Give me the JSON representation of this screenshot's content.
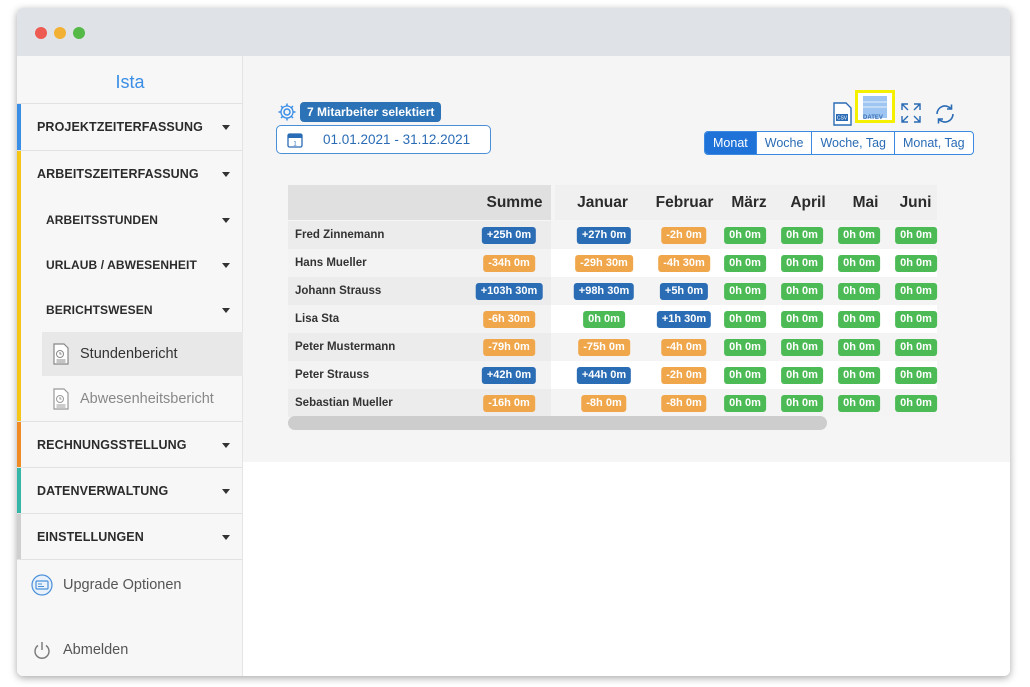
{
  "app": {
    "title": "Ista"
  },
  "colors": {
    "accent": "#1f73d8",
    "positive": "#2b6db5",
    "negative": "#f0a64a",
    "zero": "#4cba55",
    "highlight": "#f4f000"
  },
  "sidebar": {
    "sections": [
      {
        "label": "PROJEKTZEITERFASSUNG",
        "stripe": "#3a8ee6"
      },
      {
        "label": "ARBEITSZEITERFASSUNG",
        "stripe": "#f5c518"
      },
      {
        "label": "RECHNUNGSSTELLUNG",
        "stripe": "#f08a24"
      },
      {
        "label": "DATENVERWALTUNG",
        "stripe": "#36b6a6"
      },
      {
        "label": "EINSTELLUNGEN",
        "stripe": "#cfcfcf"
      }
    ],
    "subsections": [
      {
        "label": "ARBEITSSTUNDEN"
      },
      {
        "label": "URLAUB / ABWESENHEIT"
      },
      {
        "label": "BERICHTSWESEN"
      }
    ],
    "reports": [
      {
        "label": "Stundenbericht",
        "icon": "report-doc-icon",
        "active": true
      },
      {
        "label": "Abwesenheitsbericht",
        "icon": "report-doc-icon",
        "active": false
      }
    ],
    "upgrade": {
      "label": "Upgrade Optionen",
      "icon": "upgrade-icon"
    },
    "logout": {
      "label": "Abmelden",
      "icon": "power-icon"
    }
  },
  "toolbar": {
    "selected_badge": "7 Mitarbeiter selektiert",
    "date_range": "01.01.2021 - 31.12.2021",
    "icons": [
      "gear-icon",
      "calendar-icon",
      "csv-export-icon",
      "datev-export-icon",
      "expand-icon",
      "refresh-icon"
    ],
    "datev_label": "DATEV",
    "views": [
      "Monat",
      "Woche",
      "Woche, Tag",
      "Monat, Tag"
    ],
    "active_view": "Monat"
  },
  "table": {
    "columns": [
      "Summe",
      "Januar",
      "Februar",
      "März",
      "April",
      "Mai",
      "Juni"
    ],
    "rows": [
      {
        "name": "Fred Zinnemann",
        "values": [
          "+25h 0m",
          "+27h 0m",
          "-2h 0m",
          "0h 0m",
          "0h 0m",
          "0h 0m",
          "0h 0m"
        ]
      },
      {
        "name": "Hans Mueller",
        "values": [
          "-34h 0m",
          "-29h 30m",
          "-4h 30m",
          "0h 0m",
          "0h 0m",
          "0h 0m",
          "0h 0m"
        ]
      },
      {
        "name": "Johann Strauss",
        "values": [
          "+103h 30m",
          "+98h 30m",
          "+5h 0m",
          "0h 0m",
          "0h 0m",
          "0h 0m",
          "0h 0m"
        ]
      },
      {
        "name": "Lisa Sta",
        "values": [
          "-6h 30m",
          "0h 0m",
          "+1h 30m",
          "0h 0m",
          "0h 0m",
          "0h 0m",
          "0h 0m"
        ]
      },
      {
        "name": "Peter Mustermann",
        "values": [
          "-79h 0m",
          "-75h 0m",
          "-4h 0m",
          "0h 0m",
          "0h 0m",
          "0h 0m",
          "0h 0m"
        ]
      },
      {
        "name": "Peter Strauss",
        "values": [
          "+42h 0m",
          "+44h 0m",
          "-2h 0m",
          "0h 0m",
          "0h 0m",
          "0h 0m",
          "0h 0m"
        ]
      },
      {
        "name": "Sebastian Mueller",
        "values": [
          "-16h 0m",
          "-8h 0m",
          "-8h 0m",
          "0h 0m",
          "0h 0m",
          "0h 0m",
          "0h 0m"
        ]
      }
    ]
  }
}
